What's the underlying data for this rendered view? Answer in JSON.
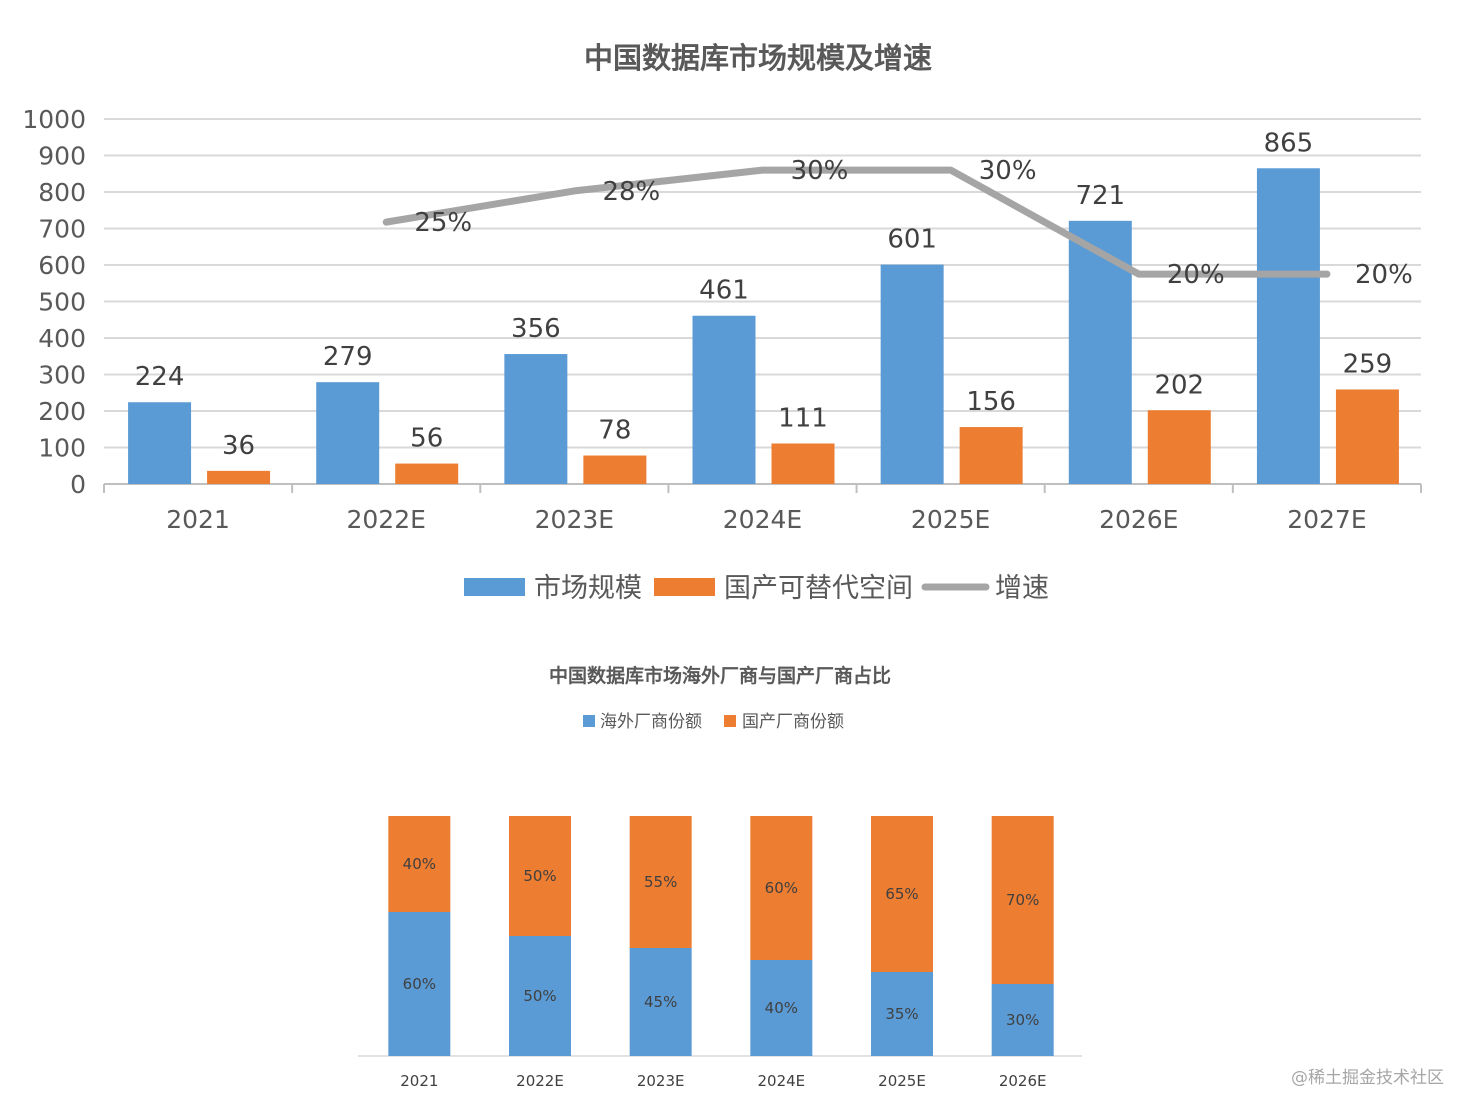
{
  "chart_data": [
    {
      "type": "bar",
      "title": "中国数据库市场规模及增速",
      "categories": [
        "2021",
        "2022E",
        "2023E",
        "2024E",
        "2025E",
        "2026E",
        "2027E"
      ],
      "ylim": [
        0,
        1000
      ],
      "yticks": [
        0,
        100,
        200,
        300,
        400,
        500,
        600,
        700,
        800,
        900,
        1000
      ],
      "grid": true,
      "legend_position": "bottom",
      "series": [
        {
          "name": "市场规模",
          "kind": "bar",
          "color": "#5B9BD5",
          "values": [
            224,
            279,
            356,
            461,
            601,
            721,
            865
          ]
        },
        {
          "name": "国产可替代空间",
          "kind": "bar",
          "color": "#ED7D31",
          "values": [
            36,
            56,
            78,
            111,
            156,
            202,
            259
          ]
        },
        {
          "name": "增速",
          "kind": "line",
          "color": "#A5A5A5",
          "values": [
            null,
            25,
            28,
            30,
            30,
            20,
            20
          ],
          "labels": [
            "",
            "25%",
            "28%",
            "30%",
            "30%",
            "20%",
            "20%"
          ]
        }
      ]
    },
    {
      "type": "bar",
      "stacked": true,
      "title": "中国数据库市场海外厂商与国产厂商占比",
      "categories": [
        "2021",
        "2022E",
        "2023E",
        "2024E",
        "2025E",
        "2026E"
      ],
      "ylim": [
        0,
        100
      ],
      "grid": false,
      "legend_position": "top",
      "series": [
        {
          "name": "海外厂商份额",
          "color": "#5B9BD5",
          "values": [
            60,
            50,
            45,
            40,
            35,
            30
          ],
          "labels": [
            "60%",
            "50%",
            "45%",
            "40%",
            "35%",
            "30%"
          ]
        },
        {
          "name": "国产厂商份额",
          "color": "#ED7D31",
          "values": [
            40,
            50,
            55,
            60,
            65,
            70
          ],
          "labels": [
            "40%",
            "50%",
            "55%",
            "60%",
            "65%",
            "70%"
          ]
        }
      ]
    }
  ],
  "watermark": "@稀土掘金技术社区"
}
